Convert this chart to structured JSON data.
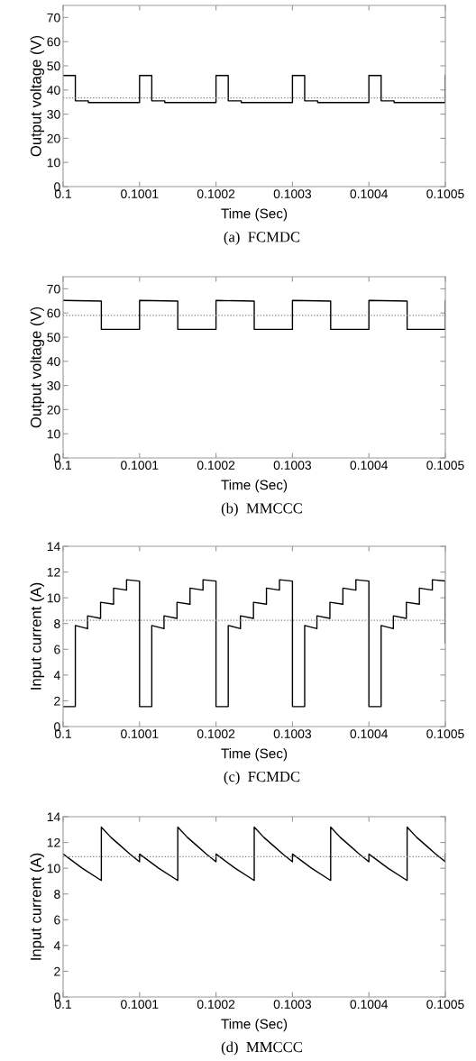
{
  "chart_data": [
    {
      "type": "line",
      "xlabel": "Time (Sec)",
      "ylabel": "Output voltage (V)",
      "annotations": [
        "(a)  FCMDC"
      ],
      "grid": false,
      "line_style": "solid",
      "xlim": [
        0.1,
        0.1005
      ],
      "xticks": [
        0.1,
        0.1001,
        0.1002,
        0.1003,
        0.1004,
        0.1005
      ],
      "ylim": [
        0,
        75
      ],
      "yticks": [
        0,
        10,
        20,
        30,
        40,
        50,
        60,
        70
      ],
      "ref_lines": [
        {
          "axis": "y",
          "value": 36.7,
          "color": "#808080",
          "line_style": "dotted"
        }
      ],
      "series": [
        {
          "color": "#000000",
          "x": [
            0.1,
            0.100016,
            0.100016,
            0.100033,
            0.100033,
            0.1001,
            0.1001,
            0.100116,
            0.100116,
            0.100133,
            0.100133,
            0.1002,
            0.1002,
            0.100216,
            0.100216,
            0.100233,
            0.100233,
            0.1003,
            0.1003,
            0.100316,
            0.100316,
            0.100333,
            0.100333,
            0.1004,
            0.1004,
            0.100416,
            0.100416,
            0.100433,
            0.100433,
            0.1005,
            0.1005
          ],
          "values": [
            46,
            46,
            35.5,
            35.5,
            34.8,
            34.8,
            46,
            46,
            35.5,
            35.5,
            34.8,
            34.8,
            46,
            46,
            35.5,
            35.5,
            34.8,
            34.8,
            46,
            46,
            35.5,
            35.5,
            34.8,
            34.8,
            46,
            46,
            35.5,
            35.5,
            34.8,
            34.8,
            46
          ]
        }
      ]
    },
    {
      "type": "line",
      "xlabel": "Time (Sec)",
      "ylabel": "Output voltage (V)",
      "annotations": [
        "(b)  MMCCC"
      ],
      "grid": false,
      "line_style": "solid",
      "xlim": [
        0.1,
        0.1005
      ],
      "xticks": [
        0.1,
        0.1001,
        0.1002,
        0.1003,
        0.1004,
        0.1005
      ],
      "ylim": [
        0,
        75
      ],
      "yticks": [
        0,
        10,
        20,
        30,
        40,
        50,
        60,
        70
      ],
      "ref_lines": [
        {
          "axis": "y",
          "value": 59,
          "color": "#808080",
          "line_style": "dotted"
        }
      ],
      "series": [
        {
          "color": "#000000",
          "x": [
            0.1,
            0.10005,
            0.10005,
            0.1001,
            0.1001,
            0.10015,
            0.10015,
            0.1002,
            0.1002,
            0.10025,
            0.10025,
            0.1003,
            0.1003,
            0.10035,
            0.10035,
            0.1004,
            0.1004,
            0.10045,
            0.10045,
            0.1005,
            0.1005
          ],
          "values": [
            65.2,
            64.9,
            53.2,
            53.2,
            65.2,
            64.9,
            53.2,
            53.2,
            65.2,
            64.9,
            53.2,
            53.2,
            65.2,
            64.9,
            53.2,
            53.2,
            65.2,
            64.9,
            53.2,
            53.2,
            65
          ]
        }
      ]
    },
    {
      "type": "line",
      "xlabel": "Time (Sec)",
      "ylabel": "Input current (A)",
      "annotations": [
        "(c)  FCMDC"
      ],
      "grid": false,
      "line_style": "solid",
      "xlim": [
        0.1,
        0.1005
      ],
      "xticks": [
        0.1,
        0.1001,
        0.1002,
        0.1003,
        0.1004,
        0.1005
      ],
      "ylim": [
        0,
        14
      ],
      "yticks": [
        0,
        2,
        4,
        6,
        8,
        10,
        12,
        14
      ],
      "ref_lines": [
        {
          "axis": "y",
          "value": 8.25,
          "color": "#808080",
          "line_style": "dotted"
        }
      ],
      "series": [
        {
          "color": "#000000",
          "x": [
            0.1,
            0.100016,
            0.100016,
            0.100032,
            0.100032,
            0.100049,
            0.100049,
            0.100066,
            0.100066,
            0.100083,
            0.100083,
            0.1001,
            0.1001,
            0.100116,
            0.100116,
            0.100132,
            0.100132,
            0.100149,
            0.100149,
            0.100166,
            0.100166,
            0.100183,
            0.100183,
            0.1002,
            0.1002,
            0.100216,
            0.100216,
            0.100232,
            0.100232,
            0.100249,
            0.100249,
            0.100266,
            0.100266,
            0.100283,
            0.100283,
            0.1003,
            0.1003,
            0.100316,
            0.100316,
            0.100332,
            0.100332,
            0.100349,
            0.100349,
            0.100366,
            0.100366,
            0.100383,
            0.100383,
            0.1004,
            0.1004,
            0.100416,
            0.100416,
            0.100432,
            0.100432,
            0.100449,
            0.100449,
            0.100466,
            0.100466,
            0.100483,
            0.100483,
            0.1005,
            0.1005
          ],
          "values": [
            1.55,
            1.55,
            7.85,
            7.6,
            8.6,
            8.4,
            9.65,
            9.5,
            10.75,
            10.6,
            11.4,
            11.3,
            1.55,
            1.55,
            7.85,
            7.6,
            8.6,
            8.4,
            9.65,
            9.5,
            10.75,
            10.6,
            11.4,
            11.3,
            1.55,
            1.55,
            7.85,
            7.6,
            8.6,
            8.4,
            9.65,
            9.5,
            10.75,
            10.6,
            11.4,
            11.3,
            1.55,
            1.55,
            7.85,
            7.6,
            8.6,
            8.4,
            9.65,
            9.5,
            10.75,
            10.6,
            11.4,
            11.3,
            1.55,
            1.55,
            7.85,
            7.6,
            8.6,
            8.4,
            9.65,
            9.5,
            10.75,
            10.6,
            11.4,
            11.3,
            6.5
          ]
        }
      ]
    },
    {
      "type": "line",
      "xlabel": "Time (Sec)",
      "ylabel": "Input current (A)",
      "annotations": [
        "(d)  MMCCC"
      ],
      "grid": false,
      "line_style": "solid",
      "xlim": [
        0.1,
        0.1005
      ],
      "xticks": [
        0.1,
        0.1001,
        0.1002,
        0.1003,
        0.1004,
        0.1005
      ],
      "ylim": [
        0,
        14
      ],
      "yticks": [
        0,
        2,
        4,
        6,
        8,
        10,
        12,
        14
      ],
      "ref_lines": [
        {
          "axis": "y",
          "value": 10.9,
          "color": "#808080",
          "line_style": "dotted"
        }
      ],
      "series": [
        {
          "color": "#000000",
          "x": [
            0.1,
            0.100025,
            0.10005,
            0.10005,
            0.1000625,
            0.100075,
            0.1000875,
            0.1001,
            0.1001,
            0.100125,
            0.10015,
            0.10015,
            0.1001625,
            0.100175,
            0.1001875,
            0.1002,
            0.1002,
            0.100225,
            0.10025,
            0.10025,
            0.1002625,
            0.100275,
            0.1002875,
            0.1003,
            0.1003,
            0.100325,
            0.10035,
            0.10035,
            0.1003625,
            0.100375,
            0.1003875,
            0.1004,
            0.1004,
            0.100425,
            0.10045,
            0.10045,
            0.1004625,
            0.100475,
            0.1004875,
            0.1005,
            0.1005
          ],
          "values": [
            11.1,
            10.0,
            9.05,
            13.2,
            12.4,
            11.75,
            11.1,
            10.5,
            11.1,
            10.0,
            9.05,
            13.2,
            12.4,
            11.75,
            11.1,
            10.5,
            11.1,
            10.0,
            9.05,
            13.2,
            12.4,
            11.75,
            11.1,
            10.5,
            11.1,
            10.0,
            9.05,
            13.2,
            12.4,
            11.75,
            11.1,
            10.5,
            11.1,
            10.0,
            9.05,
            13.2,
            12.4,
            11.75,
            11.1,
            10.5,
            11.1
          ]
        }
      ]
    }
  ]
}
